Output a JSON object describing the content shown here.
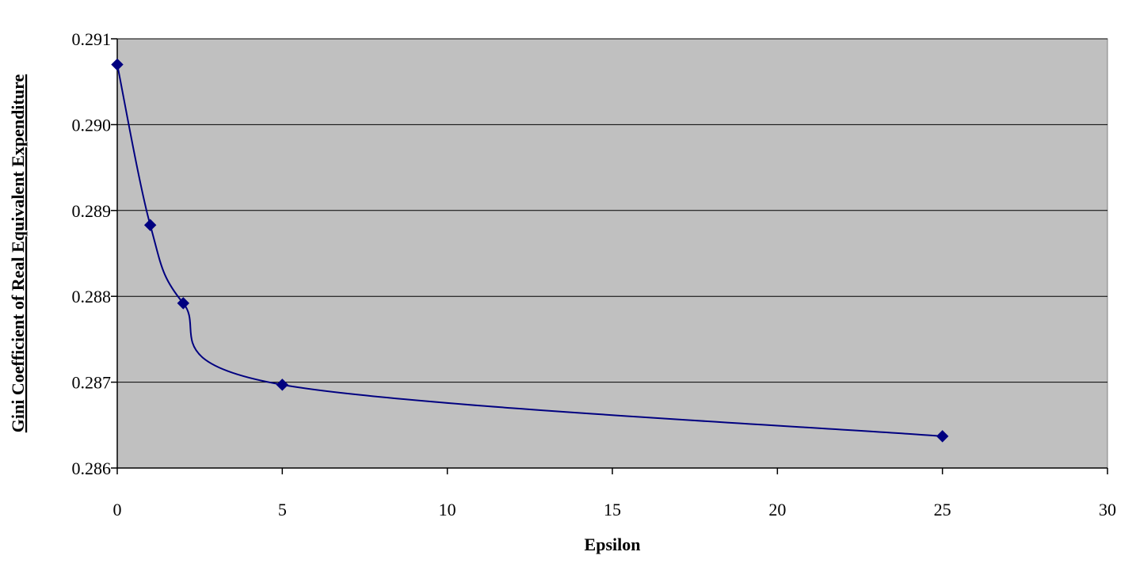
{
  "chart_data": {
    "type": "line",
    "title": "",
    "xlabel": "Epsilon",
    "ylabel": "Gini Coefficient of Real Equivalent Expenditure",
    "xlim": [
      0,
      30
    ],
    "ylim": [
      0.286,
      0.291
    ],
    "x_ticks": [
      0,
      5,
      10,
      15,
      20,
      25,
      30
    ],
    "x_tick_labels": [
      "0",
      "5",
      "10",
      "15",
      "20",
      "25",
      "30"
    ],
    "y_ticks": [
      0.286,
      0.287,
      0.288,
      0.289,
      0.29,
      0.291
    ],
    "y_tick_labels": [
      "0.286",
      "0.287",
      "0.288",
      "0.289",
      "0.290",
      "0.291"
    ],
    "grid": "horizontal",
    "legend": "none",
    "series": [
      {
        "x": [
          0,
          1,
          2,
          5,
          25
        ],
        "values": [
          0.2907,
          0.28883,
          0.28792,
          0.28697,
          0.28637
        ],
        "color": "#000080",
        "marker": "diamond",
        "smooth": true
      }
    ],
    "colors": {
      "plot_background": "#c0c0c0",
      "gridline": "#000000",
      "line": "#000080",
      "marker": "#000080"
    }
  }
}
